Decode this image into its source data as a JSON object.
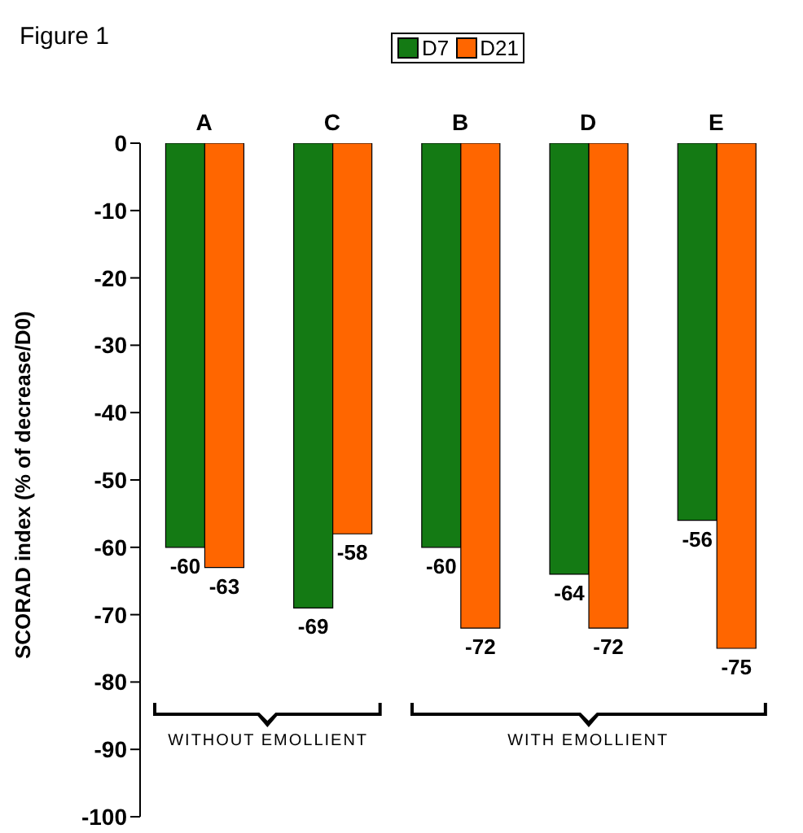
{
  "chart_data": {
    "type": "bar",
    "title": "Figure 1",
    "ylabel": "SCORAD index (% of decrease/D0)",
    "categories": [
      "A",
      "C",
      "B",
      "D",
      "E"
    ],
    "series": [
      {
        "name": "D7",
        "color": "#147a14",
        "values": [
          -60,
          -69,
          -60,
          -64,
          -56
        ]
      },
      {
        "name": "D21",
        "color": "#ff6600",
        "values": [
          -63,
          -58,
          -72,
          -72,
          -75
        ]
      }
    ],
    "ylim": [
      -100,
      0
    ],
    "yticks": [
      -100,
      -90,
      -80,
      -70,
      -60,
      -50,
      -40,
      -30,
      -20,
      -10,
      0
    ],
    "grid": false,
    "legend": "top",
    "data_labels": true,
    "annotations": [
      "WITHOUT EMOLLIENT",
      "WITH EMOLLIENT"
    ]
  }
}
